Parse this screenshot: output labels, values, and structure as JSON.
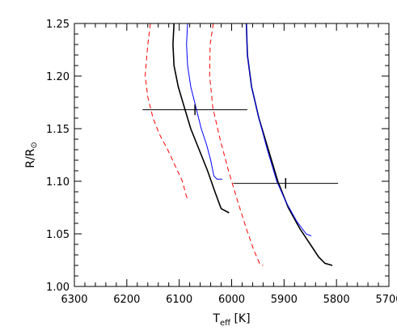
{
  "chart_data": {
    "type": "line",
    "xlabel": "T",
    "xlabel_sub": "eff",
    "xlabel_unit": " [K]",
    "ylabel": "R/R",
    "ylabel_symbol": "⊙",
    "xlim": [
      6300,
      5700
    ],
    "ylim": [
      1.0,
      1.25
    ],
    "x_reversed": true,
    "grid": false,
    "x_ticks": [
      6300,
      6200,
      6100,
      6000,
      5900,
      5800,
      5700
    ],
    "x_tick_labels": [
      "6300",
      "6200",
      "6100",
      "6000",
      "5900",
      "5800",
      "5700"
    ],
    "y_ticks": [
      1.0,
      1.05,
      1.1,
      1.15,
      1.2,
      1.25
    ],
    "y_tick_labels": [
      "1.00",
      "1.05",
      "1.10",
      "1.15",
      "1.20",
      "1.25"
    ],
    "series": [
      {
        "color": "#ff0000",
        "style": "dashed",
        "x": [
          6155,
          6160,
          6165,
          6160,
          6150,
          6138,
          6122,
          6108,
          6094,
          6086,
          6080
        ],
        "y": [
          1.25,
          1.23,
          1.2,
          1.18,
          1.16,
          1.145,
          1.13,
          1.115,
          1.1,
          1.085,
          1.082
        ]
      },
      {
        "color": "#000000",
        "style": "solid",
        "x": [
          6110,
          6112,
          6110,
          6102,
          6090,
          6078,
          6062,
          6046,
          6032,
          6020,
          6005
        ],
        "y": [
          1.25,
          1.23,
          1.21,
          1.19,
          1.17,
          1.15,
          1.13,
          1.11,
          1.09,
          1.074,
          1.07
        ]
      },
      {
        "color": "#0000ff",
        "style": "solid",
        "x": [
          6084,
          6086,
          6084,
          6078,
          6068,
          6058,
          6048,
          6040,
          6034,
          6028,
          6018
        ],
        "y": [
          1.25,
          1.23,
          1.21,
          1.19,
          1.17,
          1.15,
          1.135,
          1.12,
          1.105,
          1.102,
          1.102
        ]
      },
      {
        "color": "#ff0000",
        "style": "dashed",
        "x": [
          6035,
          6041,
          6042,
          6036,
          6022,
          6006,
          5988,
          5972,
          5958,
          5946,
          5940
        ],
        "y": [
          1.25,
          1.23,
          1.2,
          1.17,
          1.14,
          1.11,
          1.08,
          1.055,
          1.035,
          1.021,
          1.02
        ]
      },
      {
        "color": "#000000",
        "style": "solid",
        "x": [
          5972,
          5970,
          5962,
          5948,
          5930,
          5912,
          5892,
          5870,
          5850,
          5834,
          5822,
          5808
        ],
        "y": [
          1.25,
          1.22,
          1.19,
          1.16,
          1.13,
          1.1,
          1.075,
          1.055,
          1.04,
          1.028,
          1.022,
          1.02
        ]
      },
      {
        "color": "#0000ff",
        "style": "solid",
        "x": [
          5972,
          5970,
          5962,
          5948,
          5932,
          5914,
          5896,
          5876,
          5858,
          5848
        ],
        "y": [
          1.25,
          1.22,
          1.19,
          1.16,
          1.13,
          1.1,
          1.08,
          1.062,
          1.05,
          1.048
        ]
      }
    ],
    "error_bars": [
      {
        "x": 6070,
        "y": 1.168,
        "x_low": 6170,
        "x_high": 5970,
        "y_low": 1.163,
        "y_high": 1.173
      },
      {
        "x": 5897,
        "y": 1.098,
        "x_low": 5997,
        "x_high": 5797,
        "y_low": 1.093,
        "y_high": 1.103
      }
    ]
  }
}
